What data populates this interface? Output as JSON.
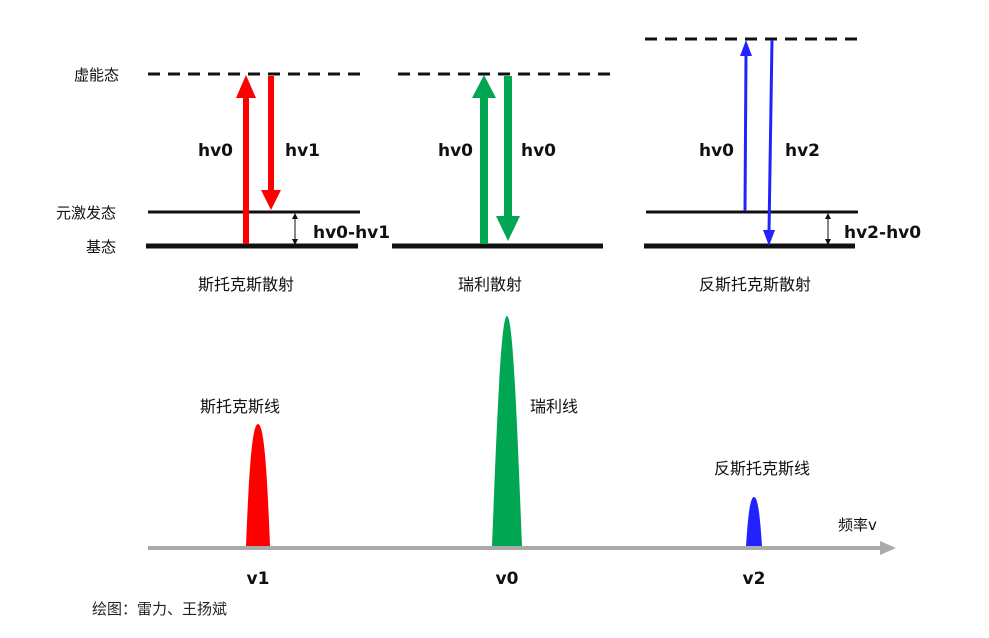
{
  "levels": {
    "virtual": "虚能态",
    "excited": "元激发态",
    "ground": "基态"
  },
  "panels": [
    {
      "caption": "斯托克斯散射",
      "up_label": "hv0",
      "down_label": "hv1",
      "gap_label": "hv0-hv1",
      "color": "#ff0000"
    },
    {
      "caption": "瑞利散射",
      "up_label": "hv0",
      "down_label": "hv0",
      "color": "#00a651"
    },
    {
      "caption": "反斯托克斯散射",
      "up_label": "hv0",
      "down_label": "hv2",
      "gap_label": "hv2-hv0",
      "color": "#2222ff"
    }
  ],
  "spectrum": {
    "axis_label": "频率v",
    "lines": [
      {
        "name": "斯托克斯线",
        "tick": "v1",
        "color": "#ff0000"
      },
      {
        "name": "瑞利线",
        "tick": "v0",
        "color": "#00a651"
      },
      {
        "name": "反斯托克斯线",
        "tick": "v2",
        "color": "#2222ff"
      }
    ]
  },
  "credit": "绘图：雷力、王扬斌"
}
